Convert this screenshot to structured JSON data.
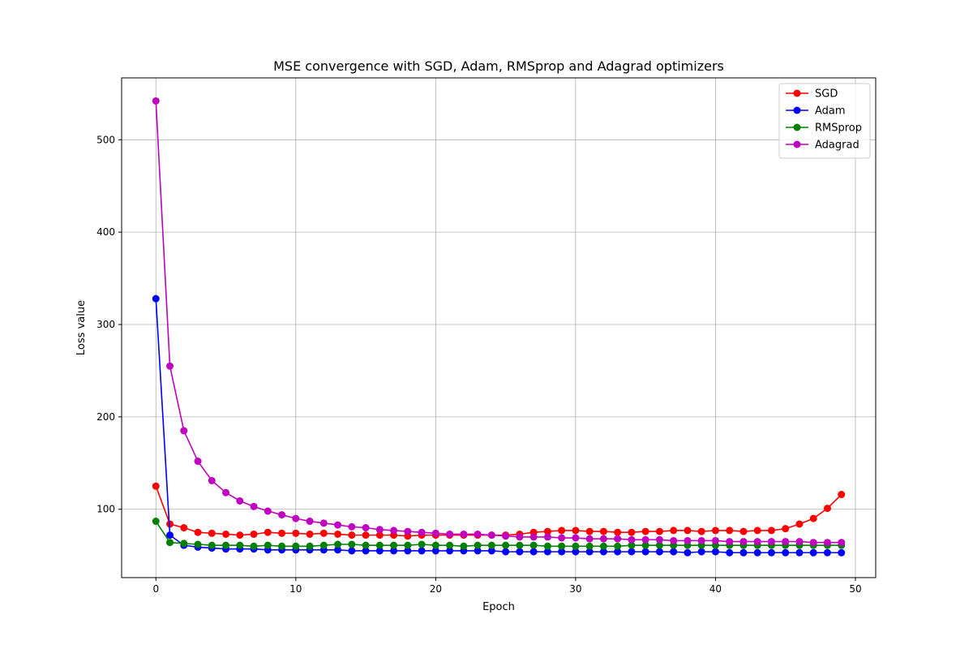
{
  "chart_data": {
    "type": "line",
    "title": "MSE convergence with SGD, Adam, RMSprop and Adagrad optimizers",
    "xlabel": "Epoch",
    "ylabel": "Loss value",
    "xlim": [
      -2.45,
      51.45
    ],
    "ylim": [
      26,
      567
    ],
    "xticks": [
      0,
      10,
      20,
      30,
      40,
      50
    ],
    "yticks": [
      100,
      200,
      300,
      400,
      500
    ],
    "grid": true,
    "legend": "top-right",
    "x": [
      0,
      1,
      2,
      3,
      4,
      5,
      6,
      7,
      8,
      9,
      10,
      11,
      12,
      13,
      14,
      15,
      16,
      17,
      18,
      19,
      20,
      21,
      22,
      23,
      24,
      25,
      26,
      27,
      28,
      29,
      30,
      31,
      32,
      33,
      34,
      35,
      36,
      37,
      38,
      39,
      40,
      41,
      42,
      43,
      44,
      45,
      46,
      47,
      48,
      49
    ],
    "series": [
      {
        "name": "SGD",
        "color": "#ff0000",
        "values": [
          125,
          84,
          80,
          75,
          74,
          73,
          72,
          73,
          75,
          74,
          74,
          73,
          74,
          73,
          72,
          72,
          72,
          72,
          71,
          72,
          72,
          72,
          72,
          72,
          72,
          72,
          73,
          75,
          76,
          77,
          77,
          76,
          76,
          75,
          75,
          76,
          76,
          77,
          77,
          76,
          77,
          77,
          76,
          77,
          77,
          79,
          84,
          90,
          101,
          116
        ]
      },
      {
        "name": "Adam",
        "color": "#0000ff",
        "values": [
          328,
          72,
          61,
          59,
          58,
          57,
          57,
          57,
          56,
          56,
          56,
          56,
          56,
          56,
          55,
          55,
          55,
          55,
          55,
          55,
          55,
          55,
          55,
          55,
          55,
          54,
          54,
          54,
          54,
          54,
          54,
          54,
          54,
          54,
          54,
          54,
          54,
          54,
          53,
          54,
          54,
          53,
          53,
          53,
          53,
          53,
          53,
          53,
          53,
          53
        ]
      },
      {
        "name": "RMSprop",
        "color": "#008000",
        "values": [
          87,
          64,
          63,
          62,
          61,
          61,
          61,
          60,
          61,
          60,
          60,
          60,
          61,
          62,
          62,
          61,
          61,
          61,
          61,
          62,
          61,
          61,
          60,
          61,
          61,
          61,
          61,
          61,
          60,
          60,
          60,
          60,
          60,
          60,
          61,
          61,
          61,
          61,
          61,
          61,
          61,
          61,
          61,
          61,
          61,
          61,
          61,
          61,
          61,
          61
        ]
      },
      {
        "name": "Adagrad",
        "color": "#bf00bf",
        "values": [
          542,
          255,
          185,
          152,
          131,
          118,
          109,
          103,
          98,
          94,
          90,
          87,
          85,
          83,
          81,
          80,
          78,
          77,
          76,
          75,
          74,
          73,
          73,
          73,
          72,
          71,
          70,
          70,
          70,
          69,
          69,
          68,
          68,
          68,
          67,
          67,
          67,
          66,
          66,
          66,
          66,
          65,
          65,
          65,
          65,
          65,
          65,
          64,
          64,
          64
        ]
      }
    ]
  }
}
